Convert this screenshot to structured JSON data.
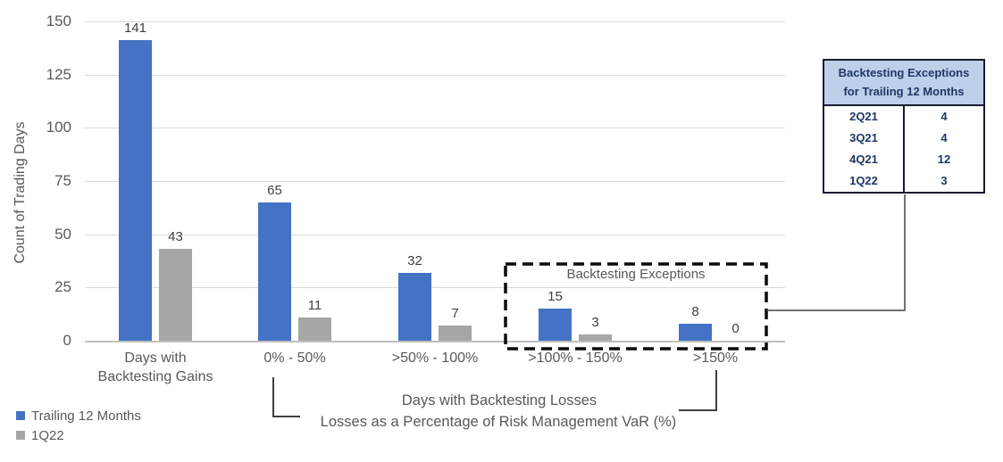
{
  "chart_data": {
    "type": "bar",
    "title": "",
    "ylabel": "Count of Trading Days",
    "xlabel_line1": "Days with Backtesting Losses",
    "xlabel_line2": "Losses as a Percentage of Risk Management VaR (%)",
    "ylim": [
      0,
      150
    ],
    "yticks": [
      0,
      25,
      50,
      75,
      100,
      125,
      150
    ],
    "grid": true,
    "legend_position": "bottom-left",
    "categories": [
      "Days with Backtesting Gains",
      "0% - 50%",
      ">50% - 100%",
      ">100% - 150%",
      ">150%"
    ],
    "category_label_lines": [
      [
        "Days with",
        "Backtesting Gains"
      ],
      [
        "0% - 50%"
      ],
      [
        ">50% - 100%"
      ],
      [
        ">100% - 150%"
      ],
      [
        ">150%"
      ]
    ],
    "series": [
      {
        "name": "Trailing 12 Months",
        "color": "#4472C4",
        "values": [
          141,
          65,
          32,
          15,
          8
        ]
      },
      {
        "name": "1Q22",
        "color": "#A6A6A6",
        "values": [
          43,
          11,
          7,
          3,
          0
        ]
      }
    ],
    "annotation_box": {
      "label": "Backtesting Exceptions",
      "covers_categories": [
        ">100% - 150%",
        ">150%"
      ]
    }
  },
  "legend": {
    "items": [
      {
        "label": "Trailing 12 Months",
        "color": "#4472C4"
      },
      {
        "label": "1Q22",
        "color": "#A6A6A6"
      }
    ]
  },
  "callout_table": {
    "header": [
      "Backtesting Exceptions",
      "for Trailing 12 Months"
    ],
    "rows": [
      {
        "quarter": "2Q21",
        "exceptions": "4"
      },
      {
        "quarter": "3Q21",
        "exceptions": "4"
      },
      {
        "quarter": "4Q21",
        "exceptions": "12"
      },
      {
        "quarter": "1Q22",
        "exceptions": "3"
      }
    ]
  },
  "colors": {
    "series_blue": "#4472C4",
    "series_gray": "#A6A6A6",
    "text_gray": "#595959",
    "value_label": "#404040",
    "gridline": "#D9D9D9",
    "axis_line": "#BFBFBF",
    "dashed_box": "#0A0A0A",
    "connector": "#404040",
    "table_header_bg": "#BDD0EA",
    "table_border": "#1A1A2E",
    "table_text": "#1F3864"
  }
}
